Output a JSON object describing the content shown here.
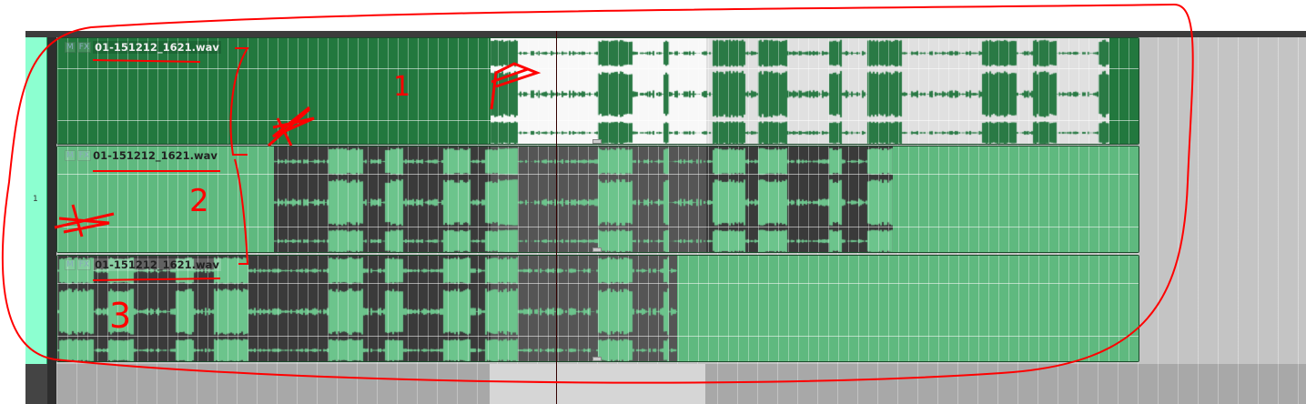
{
  "tracks": [
    {
      "number": "1"
    }
  ],
  "items": [
    {
      "name": "01-151212_1621.wav",
      "mute_label": "M",
      "fx_label": "FX"
    },
    {
      "name": "01-151212_1621.wav",
      "mute_label": "M",
      "fx_label": "FX"
    },
    {
      "name": "01-151212_1621.wav",
      "mute_label": "M",
      "fx_label": "FX"
    }
  ],
  "annotations": {
    "labels": [
      "1",
      "2",
      "3"
    ],
    "color": "#ff0000"
  },
  "colors": {
    "item_dark": "#22783e",
    "item_light": "#5fb97f",
    "selection": "#f8f8f8",
    "track_panel": "#8cffd0"
  }
}
